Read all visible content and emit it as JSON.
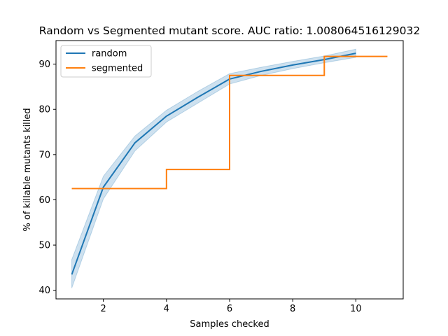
{
  "chart_data": {
    "type": "line",
    "title": "Random vs Segmented mutant score. AUC ratio: 1.008064516129032",
    "xlabel": "Samples checked",
    "ylabel": "% of killable mutants killed",
    "xlim": [
      0.5,
      11.5
    ],
    "ylim": [
      38.1,
      95.2
    ],
    "xticks": [
      2,
      4,
      6,
      8,
      10
    ],
    "yticks": [
      40,
      50,
      60,
      70,
      80,
      90
    ],
    "grid": false,
    "legend_position": "top-left",
    "series": [
      {
        "name": "random",
        "color": "#1f77b4",
        "kind": "line_with_band",
        "x": [
          1,
          2,
          3,
          4,
          5,
          6,
          7,
          8,
          9,
          10
        ],
        "y": [
          43.5,
          62.8,
          72.6,
          78.5,
          82.7,
          86.7,
          88.4,
          89.8,
          91.0,
          92.4
        ],
        "band_lower": [
          40.5,
          60.2,
          70.8,
          77.2,
          81.4,
          85.6,
          87.5,
          89.0,
          90.3,
          91.5
        ],
        "band_upper": [
          46.8,
          65.2,
          74.1,
          79.8,
          84.0,
          87.9,
          89.3,
          90.6,
          91.8,
          93.3
        ]
      },
      {
        "name": "segmented",
        "color": "#ff7f0e",
        "kind": "step_post",
        "x": [
          1,
          4,
          6,
          9,
          11
        ],
        "y": [
          62.5,
          66.7,
          87.5,
          91.7,
          91.7
        ]
      }
    ]
  }
}
